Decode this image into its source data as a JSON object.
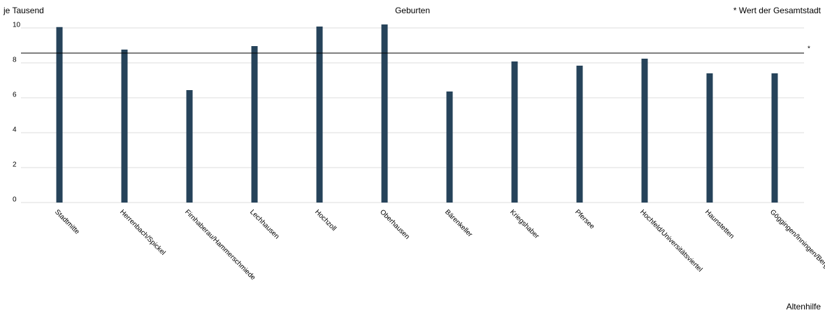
{
  "chart_data": {
    "type": "bar",
    "title": "Geburten",
    "y_label": "je Tausend",
    "note": "* Wert der Gesamtstadt",
    "footer": "Altenhilfe",
    "categories": [
      "Stadtmitte",
      "Herrenbach/Spickel",
      "Firnhaberau/Hammerschmiede",
      "Lechhausen",
      "Hochzoll",
      "Oberhausen",
      "Bärenkeller",
      "Kriegshaber",
      "Pfersee",
      "Hochfeld/Universitätsviertel",
      "Haunstetten",
      "Göggingen/Inningen/Bergheim"
    ],
    "values": [
      10.05,
      8.76,
      6.44,
      8.96,
      10.08,
      10.2,
      6.36,
      8.08,
      7.84,
      8.24,
      7.4,
      7.4
    ],
    "color": "#26435a",
    "reference": {
      "value": 8.56,
      "label": "*"
    },
    "ylim": [
      0,
      10
    ],
    "yticks": [
      0,
      2,
      4,
      6,
      8,
      10
    ],
    "grid": true
  }
}
